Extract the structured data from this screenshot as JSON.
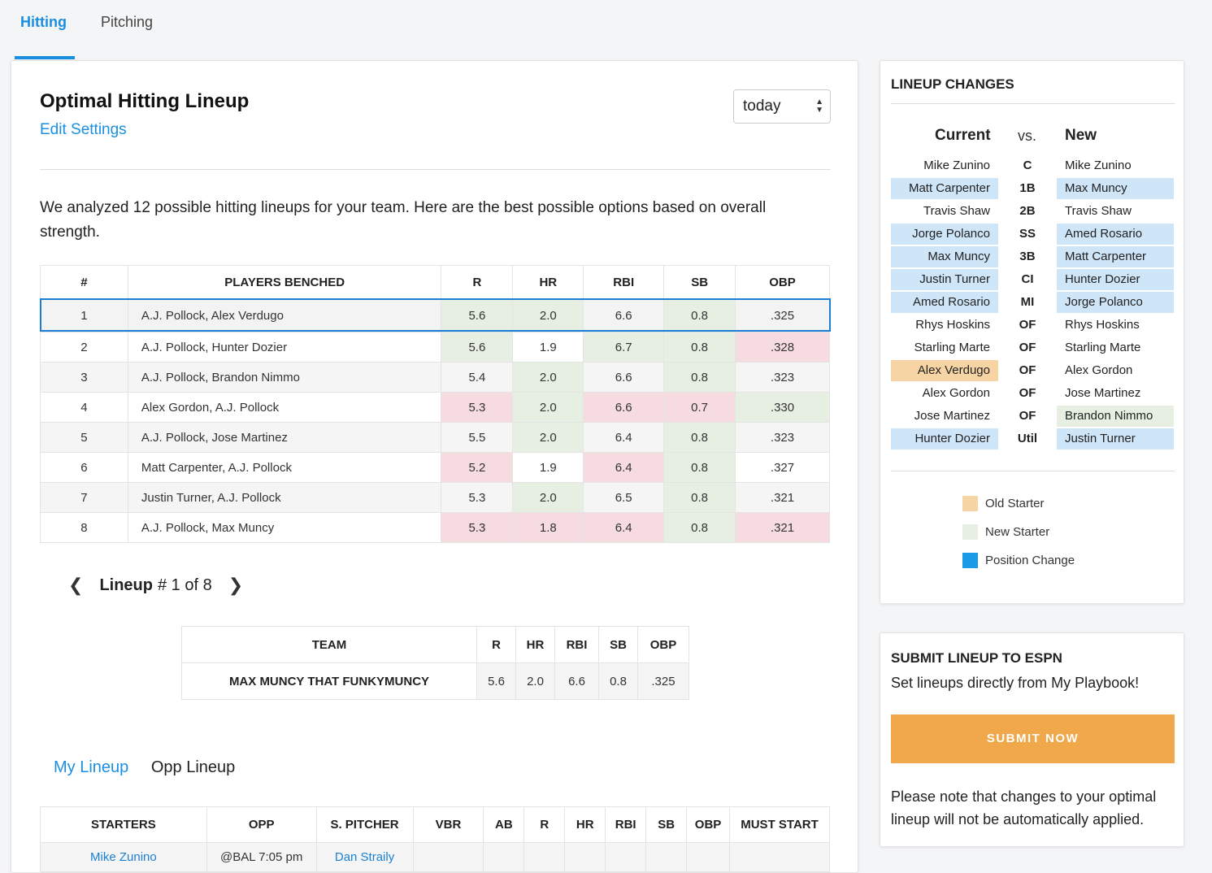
{
  "tabs": [
    {
      "label": "Hitting",
      "active": true
    },
    {
      "label": "Pitching",
      "active": false
    }
  ],
  "header": {
    "title": "Optimal Hitting Lineup",
    "edit_link": "Edit Settings",
    "date_select": "today"
  },
  "intro": "We analyzed 12 possible hitting lineups for your team. Here are the best possible options based on overall strength.",
  "lineups_table": {
    "headers": [
      "#",
      "PLAYERS BENCHED",
      "R",
      "HR",
      "RBI",
      "SB",
      "OBP"
    ],
    "rows": [
      {
        "num": "1",
        "players": "A.J. Pollock, Alex Verdugo",
        "r": "5.6",
        "hr": "2.0",
        "rbi": "6.6",
        "sb": "0.8",
        "obp": ".325"
      },
      {
        "num": "2",
        "players": "A.J. Pollock, Hunter Dozier",
        "r": "5.6",
        "hr": "1.9",
        "rbi": "6.7",
        "sb": "0.8",
        "obp": ".328"
      },
      {
        "num": "3",
        "players": "A.J. Pollock, Brandon Nimmo",
        "r": "5.4",
        "hr": "2.0",
        "rbi": "6.6",
        "sb": "0.8",
        "obp": ".323"
      },
      {
        "num": "4",
        "players": "Alex Gordon, A.J. Pollock",
        "r": "5.3",
        "hr": "2.0",
        "rbi": "6.6",
        "sb": "0.7",
        "obp": ".330"
      },
      {
        "num": "5",
        "players": "A.J. Pollock, Jose Martinez",
        "r": "5.5",
        "hr": "2.0",
        "rbi": "6.4",
        "sb": "0.8",
        "obp": ".323"
      },
      {
        "num": "6",
        "players": "Matt Carpenter, A.J. Pollock",
        "r": "5.2",
        "hr": "1.9",
        "rbi": "6.4",
        "sb": "0.8",
        "obp": ".327"
      },
      {
        "num": "7",
        "players": "Justin Turner, A.J. Pollock",
        "r": "5.3",
        "hr": "2.0",
        "rbi": "6.5",
        "sb": "0.8",
        "obp": ".321"
      },
      {
        "num": "8",
        "players": "A.J. Pollock, Max Muncy",
        "r": "5.3",
        "hr": "1.8",
        "rbi": "6.4",
        "sb": "0.8",
        "obp": ".321"
      }
    ]
  },
  "pager": {
    "label": "Lineup",
    "count": "# 1 of 8"
  },
  "team_table": {
    "headers": [
      "TEAM",
      "R",
      "HR",
      "RBI",
      "SB",
      "OBP"
    ],
    "row": {
      "team": "MAX MUNCY THAT FUNKYMUNCY",
      "r": "5.6",
      "hr": "2.0",
      "rbi": "6.6",
      "sb": "0.8",
      "obp": ".325"
    }
  },
  "lineup_tabs": [
    {
      "label": "My Lineup",
      "active": true
    },
    {
      "label": "Opp Lineup",
      "active": false
    }
  ],
  "starters_table": {
    "headers": [
      "STARTERS",
      "OPP",
      "S. PITCHER",
      "VBR",
      "AB",
      "R",
      "HR",
      "RBI",
      "SB",
      "OBP",
      "MUST START"
    ],
    "row": {
      "starter": "Mike Zunino",
      "opp": "@BAL 7:05 pm",
      "pitcher": "Dan Straily"
    }
  },
  "lineup_changes": {
    "title": "LINEUP CHANGES",
    "current_label": "Current",
    "vs_label": "vs.",
    "new_label": "New",
    "rows": [
      {
        "current": "Mike Zunino",
        "pos": "C",
        "new": "Mike Zunino"
      },
      {
        "current": "Matt Carpenter",
        "pos": "1B",
        "new": "Max Muncy"
      },
      {
        "current": "Travis Shaw",
        "pos": "2B",
        "new": "Travis Shaw"
      },
      {
        "current": "Jorge Polanco",
        "pos": "SS",
        "new": "Amed Rosario"
      },
      {
        "current": "Max Muncy",
        "pos": "3B",
        "new": "Matt Carpenter"
      },
      {
        "current": "Justin Turner",
        "pos": "CI",
        "new": "Hunter Dozier"
      },
      {
        "current": "Amed Rosario",
        "pos": "MI",
        "new": "Jorge Polanco"
      },
      {
        "current": "Rhys Hoskins",
        "pos": "OF",
        "new": "Rhys Hoskins"
      },
      {
        "current": "Starling Marte",
        "pos": "OF",
        "new": "Starling Marte"
      },
      {
        "current": "Alex Verdugo",
        "pos": "OF",
        "new": "Alex Gordon"
      },
      {
        "current": "Alex Gordon",
        "pos": "OF",
        "new": "Jose Martinez"
      },
      {
        "current": "Jose Martinez",
        "pos": "OF",
        "new": "Brandon Nimmo"
      },
      {
        "current": "Hunter Dozier",
        "pos": "Util",
        "new": "Justin Turner"
      }
    ],
    "legend": [
      {
        "label": "Old Starter",
        "color": "#f7d4a3"
      },
      {
        "label": "New Starter",
        "color": "#e6efe1"
      },
      {
        "label": "Position Change",
        "color": "#1a9be8"
      }
    ]
  },
  "submit": {
    "title": "SUBMIT LINEUP TO ESPN",
    "subtitle": "Set lineups directly from My Playbook!",
    "button": "SUBMIT NOW",
    "note": "Please note that changes to your optimal lineup will not be automatically applied."
  }
}
